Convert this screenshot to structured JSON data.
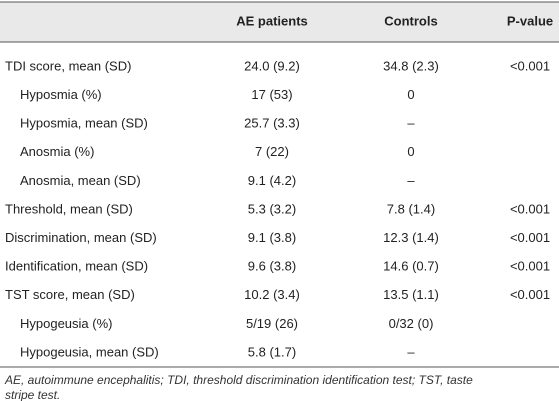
{
  "table": {
    "header": [
      "AE patients",
      "Controls",
      "P-value"
    ],
    "sections": [
      {
        "row": [
          "TDI score, mean (SD)",
          "24.0 (9.2)",
          "34.8 (2.3)",
          "<0.001"
        ],
        "subrows": [
          [
            "Hyposmia (%)",
            "17 (53)",
            "0"
          ],
          [
            "Hyposmia, mean (SD)",
            "25.7 (3.3)",
            "–"
          ],
          [
            "Anosmia (%)",
            "7 (22)",
            "0"
          ],
          [
            "Anosmia, mean (SD)",
            "9.1 (4.2)",
            "–"
          ]
        ]
      },
      {
        "row": [
          "Threshold, mean (SD)",
          "5.3 (3.2)",
          "7.8 (1.4)",
          "<0.001"
        ],
        "subrows": []
      },
      {
        "row": [
          "Discrimination, mean (SD)",
          "9.1 (3.8)",
          "12.3 (1.4)",
          "<0.001"
        ],
        "subrows": []
      },
      {
        "row": [
          "Identification, mean (SD)",
          "9.6 (3.8)",
          "14.6 (0.7)",
          "<0.001"
        ],
        "subrows": []
      },
      {
        "row": [
          "TST score, mean (SD)",
          "10.2 (3.4)",
          "13.5 (1.1)",
          "<0.001"
        ],
        "subrows": [
          [
            "Hypogeusia (%)",
            "5/19 (26)",
            "0/32 (0)"
          ],
          [
            "Hypogeusia, mean (SD)",
            "5.8 (1.7)",
            "–"
          ]
        ]
      }
    ],
    "footnote": [
      "AE, autoimmune encephalitis; TDI, threshold discrimination identification test; TST, taste",
      "stripe test."
    ]
  }
}
